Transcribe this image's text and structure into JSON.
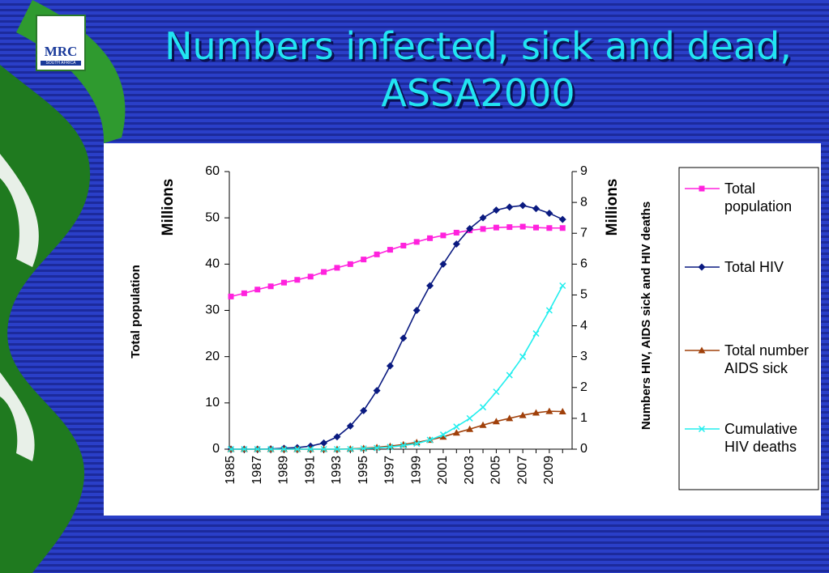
{
  "logo": {
    "text": "MRC",
    "subtext": "SOUTH AFRICA"
  },
  "chart_data": {
    "type": "line",
    "title": "Numbers infected, sick and dead, ASSA2000",
    "y_label": "Total population",
    "y_unit": "Millions",
    "y2_label": "Numbers HIV, AIDS sick and HIV deaths",
    "y2_unit": "Millions",
    "categories": [
      "1985",
      null,
      "1987",
      null,
      "1989",
      null,
      "1991",
      null,
      "1993",
      null,
      "1995",
      null,
      "1997",
      null,
      "1999",
      null,
      "2001",
      null,
      "2003",
      null,
      "2005",
      null,
      "2007",
      null,
      "2009",
      null
    ],
    "ylim": [
      0,
      60
    ],
    "yticks": [
      0,
      10,
      20,
      30,
      40,
      50,
      60
    ],
    "y2lim": [
      0,
      9
    ],
    "y2ticks": [
      0,
      1,
      2,
      3,
      4,
      5,
      6,
      7,
      8,
      9
    ],
    "series": [
      {
        "name": "Total population",
        "color": "#ff22dd",
        "marker": "square",
        "axis": "y",
        "values": [
          33,
          33.7,
          34.5,
          35.2,
          36,
          36.6,
          37.3,
          38.3,
          39.2,
          40,
          41,
          42.1,
          43.1,
          44,
          44.8,
          45.6,
          46.2,
          46.8,
          47.3,
          47.6,
          47.9,
          48,
          48.1,
          47.9,
          47.8,
          47.8
        ]
      },
      {
        "name": "Total HIV",
        "color": "#0a1a80",
        "marker": "diamond",
        "axis": "y2",
        "values": [
          0,
          0,
          0,
          0.01,
          0.03,
          0.05,
          0.1,
          0.2,
          0.4,
          0.75,
          1.25,
          1.9,
          2.7,
          3.6,
          4.5,
          5.3,
          6.0,
          6.65,
          7.15,
          7.5,
          7.75,
          7.85,
          7.9,
          7.8,
          7.65,
          7.45
        ]
      },
      {
        "name": "Total number AIDS sick",
        "color": "#a0400a",
        "marker": "triangle",
        "axis": "y2",
        "values": [
          0,
          0,
          0,
          0,
          0,
          0,
          0,
          0,
          0,
          0.01,
          0.03,
          0.06,
          0.1,
          0.15,
          0.22,
          0.3,
          0.4,
          0.53,
          0.65,
          0.78,
          0.9,
          1.0,
          1.1,
          1.18,
          1.23,
          1.22
        ]
      },
      {
        "name": "Cumulative HIV deaths",
        "color": "#22eeee",
        "marker": "x",
        "axis": "y2",
        "values": [
          0,
          0,
          0,
          0,
          0,
          0,
          0,
          0,
          0,
          0,
          0.02,
          0.04,
          0.07,
          0.12,
          0.18,
          0.3,
          0.47,
          0.73,
          1.0,
          1.36,
          1.86,
          2.4,
          3.0,
          3.75,
          4.5,
          5.3
        ]
      }
    ]
  }
}
